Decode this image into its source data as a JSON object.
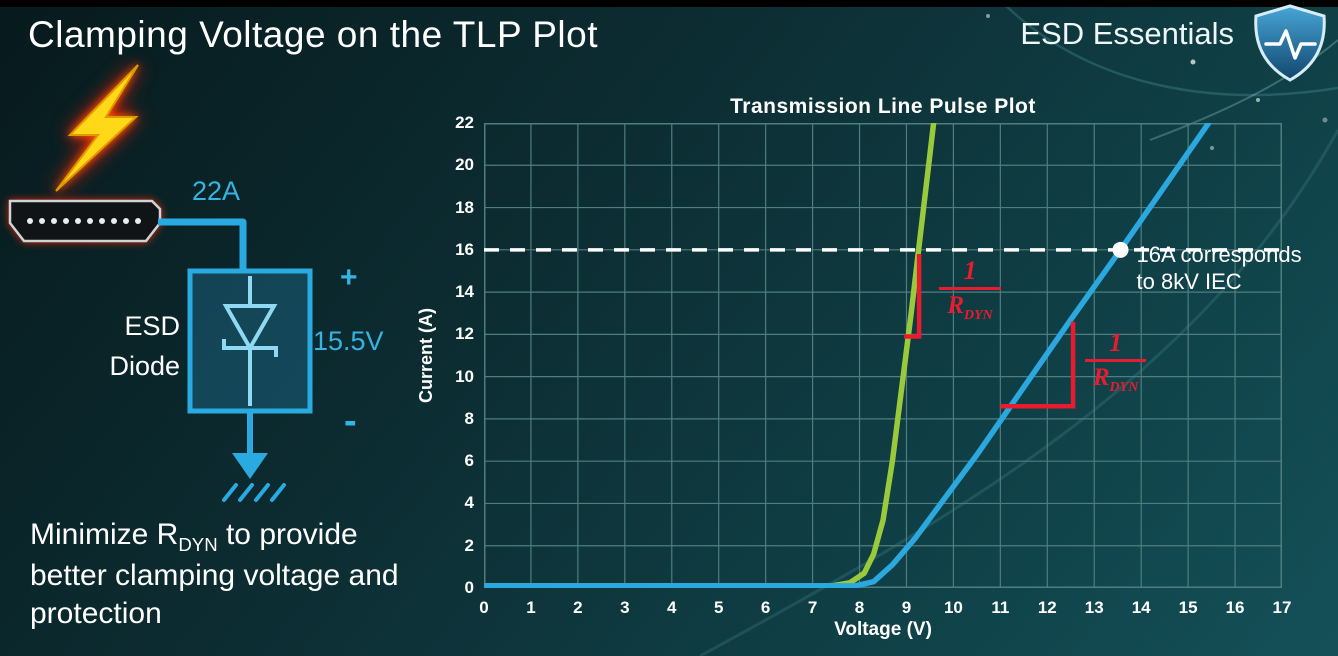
{
  "title": "Clamping Voltage on the TLP Plot",
  "brand": {
    "name": "ESD Essentials"
  },
  "diagram": {
    "surge_current_label": "22A",
    "device_line1": "ESD",
    "device_line2": "Diode",
    "plus_label": "+",
    "minus_label": "-",
    "clamp_voltage_label": "15.5V"
  },
  "caption": {
    "part1": "Minimize R",
    "sub": "DYN",
    "part2": " to provide better clamping voltage and protection"
  },
  "chart_data": {
    "type": "line",
    "title": "Transmission Line Pulse Plot",
    "xlabel": "Voltage (V)",
    "ylabel": "Current (A)",
    "xlim": [
      0,
      17
    ],
    "ylim": [
      0,
      22
    ],
    "x_ticks": [
      0,
      1,
      2,
      3,
      4,
      5,
      6,
      7,
      8,
      9,
      10,
      11,
      12,
      13,
      14,
      15,
      16,
      17
    ],
    "y_ticks": [
      0,
      2,
      4,
      6,
      8,
      10,
      12,
      14,
      16,
      18,
      20,
      22
    ],
    "grid": true,
    "legend": "none",
    "series": [
      {
        "name": "green-curve",
        "color": "#9aca3c",
        "points": [
          [
            0,
            0.1
          ],
          [
            7.4,
            0.1
          ],
          [
            7.8,
            0.25
          ],
          [
            8.1,
            0.7
          ],
          [
            8.3,
            1.6
          ],
          [
            8.5,
            3.2
          ],
          [
            8.7,
            6.0
          ],
          [
            8.9,
            9.5
          ],
          [
            9.1,
            13.0
          ],
          [
            9.3,
            16.8
          ],
          [
            9.5,
            20.5
          ],
          [
            9.6,
            22.4
          ]
        ]
      },
      {
        "name": "blue-curve",
        "color": "#2ba8df",
        "points": [
          [
            0,
            0.1
          ],
          [
            7.9,
            0.1
          ],
          [
            8.3,
            0.3
          ],
          [
            8.7,
            1.1
          ],
          [
            9.2,
            2.4
          ],
          [
            10,
            4.8
          ],
          [
            10.5,
            6.3
          ],
          [
            11.5,
            9.5
          ],
          [
            12.5,
            12.7
          ],
          [
            13.56,
            16.0
          ],
          [
            14.5,
            19.0
          ],
          [
            15.5,
            22.2
          ],
          [
            15.65,
            22.6
          ]
        ]
      }
    ],
    "reference_line": {
      "y": 16,
      "style": "dashed",
      "color": "#ffffff"
    },
    "marker": {
      "x": 13.56,
      "y": 16,
      "label_line1": "16A corresponds",
      "label_line2": "to 8kV IEC"
    },
    "slope_brackets": [
      {
        "points": [
          [
            8.95,
            11.9
          ],
          [
            9.27,
            11.9
          ],
          [
            9.27,
            15.8
          ]
        ],
        "label_x": 9.7,
        "label_y": 15.6
      },
      {
        "points": [
          [
            11.0,
            8.6
          ],
          [
            12.55,
            8.6
          ],
          [
            12.55,
            12.6
          ]
        ],
        "label_x": 12.8,
        "label_y": 12.2
      }
    ],
    "fraction": {
      "num": "1",
      "den_base": "R",
      "den_sub": "DYN"
    },
    "colors": {
      "grid": "#4e7e80",
      "axis_text": "#ffffff",
      "annotation_red": "#e81c2e",
      "dashed_white": "#ffffff"
    }
  },
  "colors": {
    "background_dark": "#07181b",
    "background_light": "#155058",
    "accent_cyan": "#2aaede",
    "bolt_yellow": "#ffd918",
    "glow_red": "#ff3b00",
    "text_white": "#ffffff"
  }
}
